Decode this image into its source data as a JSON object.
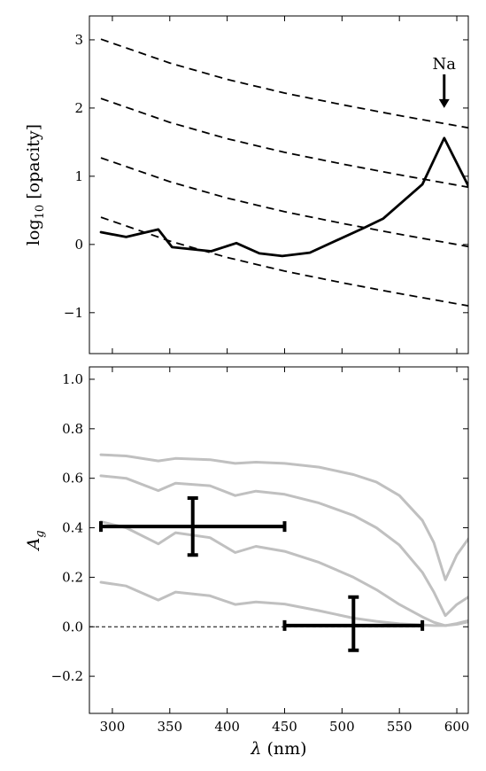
{
  "chart_data": [
    {
      "type": "line",
      "title": "",
      "xlabel": "",
      "ylabel": "log10 [opacity]",
      "ylabel_parts": {
        "base": "log",
        "sub": "10",
        "rest": " [opacity]"
      },
      "xlim": [
        280,
        610
      ],
      "ylim": [
        -1.6,
        3.35
      ],
      "yticks": [
        -1,
        0,
        1,
        2,
        3
      ],
      "yticklabels": [
        "−1",
        "0",
        "1",
        "2",
        "3"
      ],
      "grid": false,
      "legend": "none",
      "annotations": [
        {
          "text": "Na",
          "x": 589,
          "y": 2.65,
          "arrow_to": 2.0
        }
      ],
      "series": [
        {
          "style": "solid",
          "color": "#000000",
          "x": [
            290,
            312,
            340,
            352,
            386,
            408,
            428,
            448,
            472,
            520,
            536,
            570,
            589,
            610
          ],
          "y": [
            0.18,
            0.11,
            0.22,
            -0.04,
            -0.1,
            0.02,
            -0.13,
            -0.17,
            -0.12,
            0.25,
            0.38,
            0.88,
            1.56,
            0.86
          ]
        },
        {
          "style": "dashed",
          "color": "#000000",
          "x": [
            290,
            350,
            400,
            450,
            500,
            550,
            610
          ],
          "y": [
            3.01,
            2.66,
            2.42,
            2.22,
            2.05,
            1.89,
            1.71
          ]
        },
        {
          "style": "dashed",
          "color": "#000000",
          "x": [
            290,
            350,
            400,
            450,
            500,
            550,
            610
          ],
          "y": [
            2.14,
            1.79,
            1.55,
            1.35,
            1.18,
            1.02,
            0.84
          ]
        },
        {
          "style": "dashed",
          "color": "#000000",
          "x": [
            290,
            350,
            400,
            450,
            500,
            550,
            610
          ],
          "y": [
            1.27,
            0.92,
            0.68,
            0.48,
            0.31,
            0.15,
            -0.03
          ]
        },
        {
          "style": "dashed",
          "color": "#000000",
          "x": [
            290,
            350,
            400,
            450,
            500,
            550,
            610
          ],
          "y": [
            0.4,
            0.05,
            -0.19,
            -0.39,
            -0.56,
            -0.72,
            -0.9
          ]
        }
      ]
    },
    {
      "type": "line",
      "title": "",
      "xlabel": "λ (nm)",
      "xlabel_parts": {
        "sym": "λ",
        "rest": " (nm)"
      },
      "ylabel": "Ag",
      "ylabel_parts": {
        "base": "A",
        "sub": "g"
      },
      "xlim": [
        280,
        610
      ],
      "ylim": [
        -0.35,
        1.05
      ],
      "xticks": [
        300,
        350,
        400,
        450,
        500,
        550,
        600
      ],
      "xticklabels": [
        "300",
        "350",
        "400",
        "450",
        "500",
        "550",
        "600"
      ],
      "yticks": [
        -0.2,
        0.0,
        0.2,
        0.4,
        0.6,
        0.8,
        1.0
      ],
      "yticklabels": [
        "−0.2",
        "0.0",
        "0.2",
        "0.4",
        "0.6",
        "0.8",
        "1.0"
      ],
      "grid": false,
      "legend": "none",
      "series": [
        {
          "style": "solid",
          "color": "#c0c0c0",
          "x": [
            290,
            312,
            340,
            355,
            385,
            407,
            425,
            450,
            480,
            510,
            530,
            550,
            570,
            580,
            590,
            600,
            610
          ],
          "y": [
            0.695,
            0.69,
            0.67,
            0.68,
            0.675,
            0.66,
            0.665,
            0.66,
            0.645,
            0.615,
            0.585,
            0.53,
            0.43,
            0.34,
            0.19,
            0.29,
            0.355
          ]
        },
        {
          "style": "solid",
          "color": "#c0c0c0",
          "x": [
            290,
            312,
            340,
            355,
            385,
            407,
            425,
            450,
            480,
            510,
            530,
            550,
            570,
            580,
            590,
            600,
            610
          ],
          "y": [
            0.61,
            0.6,
            0.55,
            0.58,
            0.57,
            0.53,
            0.548,
            0.535,
            0.5,
            0.45,
            0.4,
            0.33,
            0.22,
            0.14,
            0.045,
            0.09,
            0.12
          ]
        },
        {
          "style": "solid",
          "color": "#c0c0c0",
          "x": [
            290,
            312,
            340,
            355,
            385,
            407,
            425,
            450,
            480,
            510,
            530,
            550,
            570,
            580,
            590,
            600,
            610
          ],
          "y": [
            0.425,
            0.4,
            0.335,
            0.38,
            0.36,
            0.3,
            0.325,
            0.305,
            0.26,
            0.2,
            0.15,
            0.09,
            0.04,
            0.018,
            0.005,
            0.013,
            0.025
          ]
        },
        {
          "style": "solid",
          "color": "#c0c0c0",
          "x": [
            290,
            312,
            340,
            355,
            385,
            407,
            425,
            450,
            480,
            510,
            530,
            550,
            570,
            580,
            590,
            600,
            610
          ],
          "y": [
            0.18,
            0.165,
            0.108,
            0.14,
            0.125,
            0.09,
            0.1,
            0.092,
            0.065,
            0.035,
            0.022,
            0.012,
            0.007,
            0.005,
            0.005,
            0.01,
            0.02
          ]
        }
      ],
      "errorbars": [
        {
          "x": 370,
          "y": 0.405,
          "xerr": [
            80,
            80
          ],
          "yerr": [
            0.115,
            0.115
          ]
        },
        {
          "x": 510,
          "y": 0.005,
          "xerr": [
            60,
            60
          ],
          "yerr": [
            0.1,
            0.115
          ]
        }
      ],
      "reference_line": {
        "y": 0.0,
        "style": "dashed",
        "x": [
          280,
          570
        ]
      }
    }
  ]
}
